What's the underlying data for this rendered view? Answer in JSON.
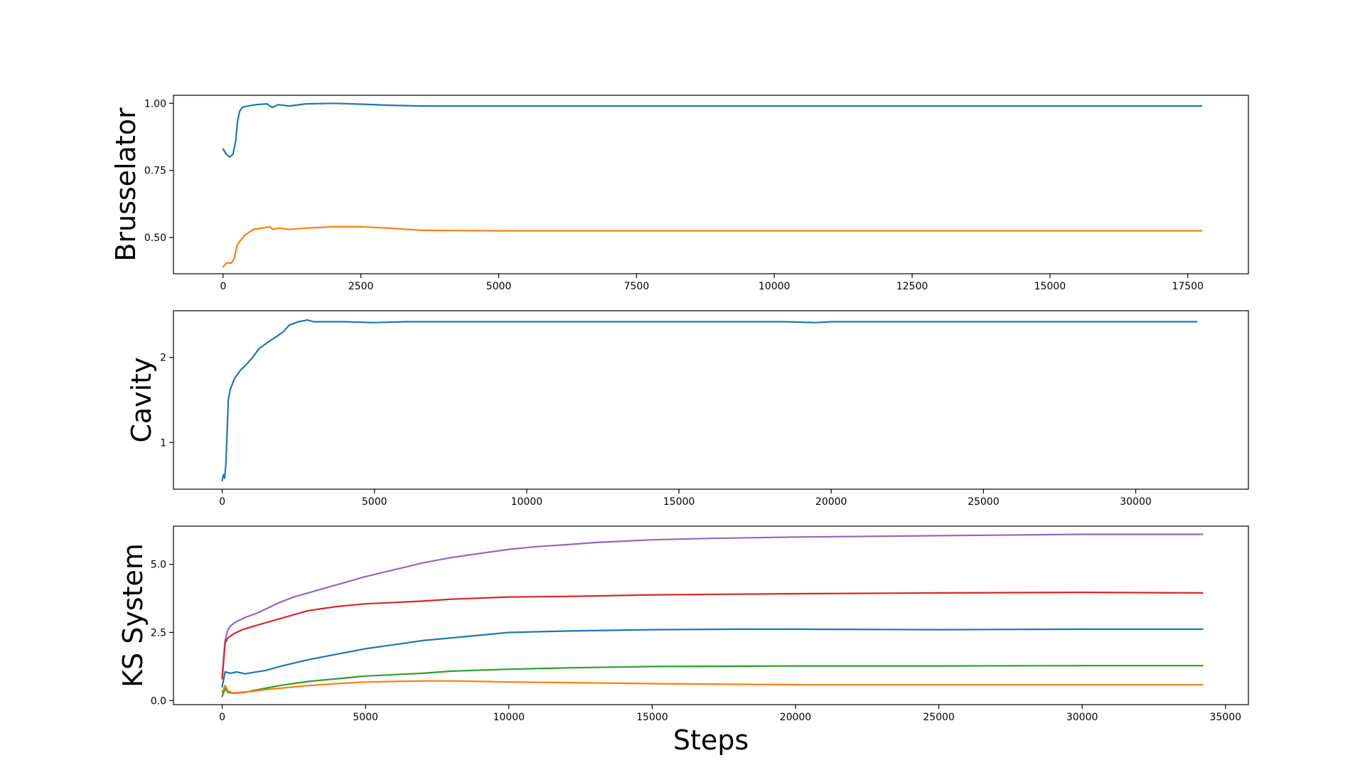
{
  "chart_data": [
    {
      "type": "line",
      "ylabel": "Brusselator",
      "xlabel": "",
      "xlim": [
        -900,
        18600
      ],
      "ylim": [
        0.365,
        1.03
      ],
      "xticks": [
        0,
        2500,
        5000,
        7500,
        10000,
        12500,
        15000,
        17500
      ],
      "xtick_labels": [
        "0",
        "2500",
        "5000",
        "7500",
        "10000",
        "12500",
        "15000",
        "17500"
      ],
      "yticks": [
        0.5,
        0.75,
        1.0
      ],
      "ytick_labels": [
        "0.50",
        "0.75",
        "1.00"
      ],
      "grid": false,
      "series": [
        {
          "color": "#1f77b4",
          "x": [
            0,
            60,
            120,
            180,
            230,
            260,
            300,
            350,
            450,
            600,
            800,
            850,
            900,
            1000,
            1200,
            1500,
            2000,
            2500,
            3000,
            3600,
            5000,
            10000,
            17750
          ],
          "y": [
            0.83,
            0.81,
            0.8,
            0.81,
            0.86,
            0.93,
            0.97,
            0.985,
            0.99,
            0.995,
            0.998,
            0.99,
            0.985,
            0.995,
            0.99,
            0.998,
            1.0,
            0.997,
            0.993,
            0.99,
            0.99,
            0.99,
            0.99
          ]
        },
        {
          "color": "#ff7f0e",
          "x": [
            0,
            60,
            150,
            200,
            250,
            300,
            400,
            550,
            700,
            850,
            900,
            1000,
            1200,
            1500,
            2000,
            2500,
            3000,
            3600,
            5000,
            10000,
            17750
          ],
          "y": [
            0.39,
            0.405,
            0.405,
            0.42,
            0.47,
            0.485,
            0.51,
            0.53,
            0.535,
            0.54,
            0.53,
            0.535,
            0.53,
            0.535,
            0.54,
            0.54,
            0.535,
            0.527,
            0.525,
            0.525,
            0.525
          ]
        }
      ]
    },
    {
      "type": "line",
      "ylabel": "Cavity",
      "xlabel": "",
      "xlim": [
        -1600,
        33700
      ],
      "ylim": [
        0.45,
        2.55
      ],
      "xticks": [
        0,
        5000,
        10000,
        15000,
        20000,
        25000,
        30000
      ],
      "xtick_labels": [
        "0",
        "5000",
        "10000",
        "15000",
        "20000",
        "25000",
        "30000"
      ],
      "yticks": [
        1,
        2
      ],
      "ytick_labels": [
        "1",
        "2"
      ],
      "grid": false,
      "series": [
        {
          "color": "#1f77b4",
          "x": [
            0,
            40,
            80,
            120,
            160,
            200,
            260,
            400,
            600,
            800,
            1000,
            1200,
            1500,
            1800,
            2000,
            2200,
            2500,
            2800,
            3000,
            3500,
            4000,
            5000,
            6000,
            8000,
            10000,
            15000,
            18500,
            19500,
            20000,
            25000,
            32000
          ],
          "y": [
            0.55,
            0.62,
            0.58,
            0.75,
            1.1,
            1.5,
            1.62,
            1.75,
            1.85,
            1.92,
            2.0,
            2.1,
            2.18,
            2.25,
            2.3,
            2.38,
            2.42,
            2.44,
            2.42,
            2.42,
            2.42,
            2.41,
            2.42,
            2.42,
            2.42,
            2.42,
            2.42,
            2.41,
            2.42,
            2.42,
            2.42
          ]
        }
      ]
    },
    {
      "type": "line",
      "ylabel": "KS System",
      "xlabel": "Steps",
      "xlim": [
        -1700,
        35800
      ],
      "ylim": [
        -0.15,
        6.4
      ],
      "xticks": [
        0,
        5000,
        10000,
        15000,
        20000,
        25000,
        30000,
        35000
      ],
      "xtick_labels": [
        "0",
        "5000",
        "10000",
        "15000",
        "20000",
        "25000",
        "30000",
        "35000"
      ],
      "yticks": [
        0.0,
        2.5,
        5.0
      ],
      "ytick_labels": [
        "0.0",
        "2.5",
        "5.0"
      ],
      "grid": false,
      "series": [
        {
          "color": "#9467bd",
          "x": [
            0,
            100,
            200,
            300,
            500,
            800,
            1200,
            1600,
            2000,
            2500,
            3000,
            3500,
            4000,
            5000,
            6000,
            7000,
            8000,
            9000,
            10000,
            11000,
            12000,
            13000,
            14000,
            15000,
            17000,
            20000,
            25000,
            30000,
            34200
          ],
          "y": [
            0.9,
            2.2,
            2.6,
            2.75,
            2.9,
            3.05,
            3.2,
            3.4,
            3.6,
            3.8,
            3.95,
            4.1,
            4.25,
            4.55,
            4.8,
            5.05,
            5.25,
            5.4,
            5.55,
            5.65,
            5.72,
            5.8,
            5.85,
            5.9,
            5.95,
            6.0,
            6.05,
            6.1,
            6.1
          ]
        },
        {
          "color": "#d62728",
          "x": [
            0,
            100,
            200,
            400,
            700,
            1000,
            1500,
            2000,
            2500,
            3000,
            4000,
            5000,
            6000,
            7000,
            8000,
            10000,
            12000,
            15000,
            20000,
            25000,
            30000,
            34200
          ],
          "y": [
            0.8,
            2.1,
            2.3,
            2.45,
            2.6,
            2.7,
            2.85,
            3.0,
            3.15,
            3.3,
            3.45,
            3.55,
            3.6,
            3.65,
            3.72,
            3.8,
            3.82,
            3.88,
            3.92,
            3.95,
            3.97,
            3.95
          ]
        },
        {
          "color": "#1f77b4",
          "x": [
            0,
            100,
            300,
            500,
            800,
            1000,
            1500,
            2000,
            3000,
            4000,
            5000,
            6000,
            7000,
            8000,
            10000,
            12000,
            15000,
            18000,
            20000,
            25000,
            30000,
            34200
          ],
          "y": [
            0.5,
            1.05,
            1.0,
            1.05,
            0.98,
            1.02,
            1.1,
            1.25,
            1.5,
            1.7,
            1.9,
            2.05,
            2.2,
            2.3,
            2.5,
            2.55,
            2.6,
            2.62,
            2.62,
            2.6,
            2.62,
            2.62
          ]
        },
        {
          "color": "#2ca02c",
          "x": [
            0,
            100,
            200,
            400,
            600,
            800,
            1000,
            1500,
            2000,
            3000,
            4000,
            5000,
            6000,
            7000,
            8000,
            10000,
            12000,
            15000,
            20000,
            25000,
            30000,
            34200
          ],
          "y": [
            0.15,
            0.45,
            0.3,
            0.27,
            0.28,
            0.3,
            0.35,
            0.45,
            0.55,
            0.7,
            0.8,
            0.9,
            0.95,
            1.0,
            1.08,
            1.15,
            1.2,
            1.25,
            1.27,
            1.27,
            1.28,
            1.28
          ]
        },
        {
          "color": "#ff7f0e",
          "x": [
            0,
            100,
            200,
            400,
            600,
            1000,
            1500,
            2000,
            3000,
            4000,
            5000,
            6000,
            7000,
            8000,
            9000,
            10000,
            12000,
            15000,
            20000,
            25000,
            30000,
            34200
          ],
          "y": [
            0.3,
            0.55,
            0.35,
            0.28,
            0.3,
            0.33,
            0.4,
            0.45,
            0.55,
            0.62,
            0.68,
            0.7,
            0.72,
            0.72,
            0.7,
            0.68,
            0.66,
            0.62,
            0.58,
            0.58,
            0.58,
            0.58
          ]
        }
      ]
    }
  ]
}
